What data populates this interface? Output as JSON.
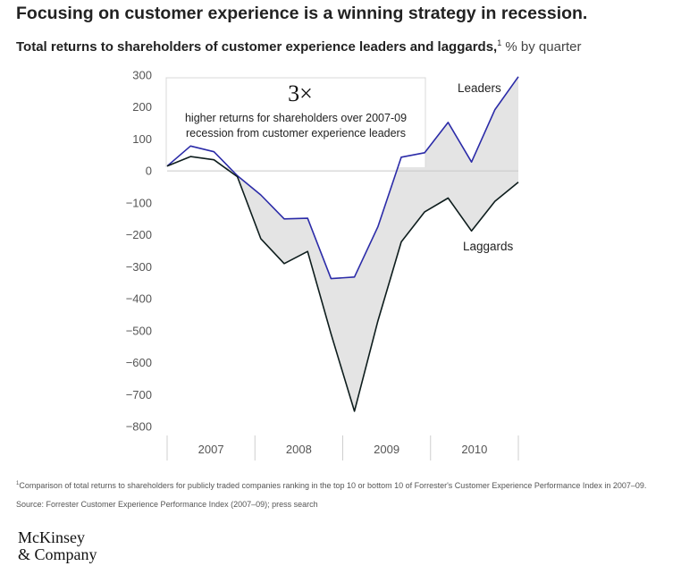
{
  "headline": "Focusing on customer experience is a winning strategy in recession.",
  "subtitle": {
    "main": "Total returns to shareholders of customer experience leaders and laggards,",
    "note_marker": "1",
    "unit": " % by quarter"
  },
  "chart_data": {
    "type": "line",
    "x": [
      "Q1 2007",
      "Q2 2007",
      "Q3 2007",
      "Q4 2007",
      "Q1 2008",
      "Q2 2008",
      "Q3 2008",
      "Q4 2008",
      "Q1 2009",
      "Q2 2009",
      "Q3 2009",
      "Q4 2009",
      "Q1 2010",
      "Q2 2010",
      "Q3 2010",
      "Q4 2010"
    ],
    "year_labels": [
      "2007",
      "2008",
      "2009",
      "2010"
    ],
    "series": [
      {
        "name": "Leaders",
        "color": "#2b2ba8",
        "values": [
          15,
          78,
          60,
          -15,
          -75,
          -150,
          -148,
          -337,
          -332,
          -175,
          43,
          57,
          152,
          28,
          192,
          295
        ]
      },
      {
        "name": "Laggards",
        "color": "#0e1d1d",
        "values": [
          15,
          45,
          35,
          -18,
          -212,
          -290,
          -252,
          -510,
          -752,
          -470,
          -222,
          -128,
          -85,
          -188,
          -95,
          -35
        ]
      }
    ],
    "fill_between_color": "#e4e4e4",
    "yticks": [
      300,
      200,
      100,
      0,
      -100,
      -200,
      -300,
      -400,
      -500,
      -600,
      -700,
      -800
    ],
    "ytick_labels": [
      "300",
      "200",
      "100",
      "0",
      "−100",
      "−200",
      "−300",
      "−400",
      "−500",
      "−600",
      "−700",
      "−800"
    ],
    "ylim": [
      -800,
      300
    ],
    "grid": false,
    "zero_line": true,
    "annotation": {
      "big": "3×",
      "line1": "higher returns for shareholders over 2007-09",
      "line2": "recession from customer experience leaders"
    }
  },
  "footnote": {
    "marker": "1",
    "text": "Comparison of total returns to shareholders for publicly traded companies ranking in the top 10 or bottom 10 of Forrester's Customer Experience Performance Index in 2007–09."
  },
  "source": "Source: Forrester Customer Experience Performance Index (2007–09); press search",
  "logo": {
    "line1": "McKinsey",
    "line2": "& Company"
  }
}
